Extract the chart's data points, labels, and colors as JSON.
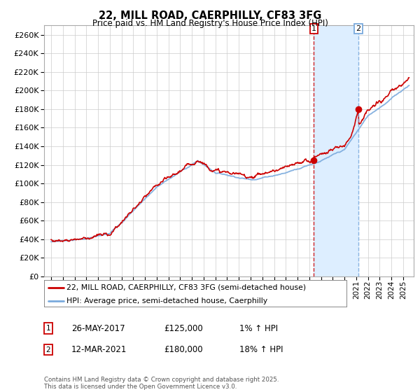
{
  "title": "22, MILL ROAD, CAERPHILLY, CF83 3FG",
  "subtitle": "Price paid vs. HM Land Registry's House Price Index (HPI)",
  "ylim": [
    0,
    270000
  ],
  "yticks": [
    0,
    20000,
    40000,
    60000,
    80000,
    100000,
    120000,
    140000,
    160000,
    180000,
    200000,
    220000,
    240000,
    260000
  ],
  "legend_line1": "22, MILL ROAD, CAERPHILLY, CF83 3FG (semi-detached house)",
  "legend_line2": "HPI: Average price, semi-detached house, Caerphilly",
  "sale1_date": "26-MAY-2017",
  "sale1_price": 125000,
  "sale1_pct": "1% ↑ HPI",
  "sale2_date": "12-MAR-2021",
  "sale2_price": 180000,
  "sale2_pct": "18% ↑ HPI",
  "footer": "Contains HM Land Registry data © Crown copyright and database right 2025.\nThis data is licensed under the Open Government Licence v3.0.",
  "hpi_color": "#7aaadd",
  "price_color": "#cc0000",
  "vline1_color": "#cc0000",
  "vline2_color": "#7aaadd",
  "shade_color": "#ddeeff",
  "marker_color": "#cc0000",
  "grid_color": "#cccccc",
  "background_color": "#ffffff",
  "sale1_x": 2017.37,
  "sale2_x": 2021.19
}
